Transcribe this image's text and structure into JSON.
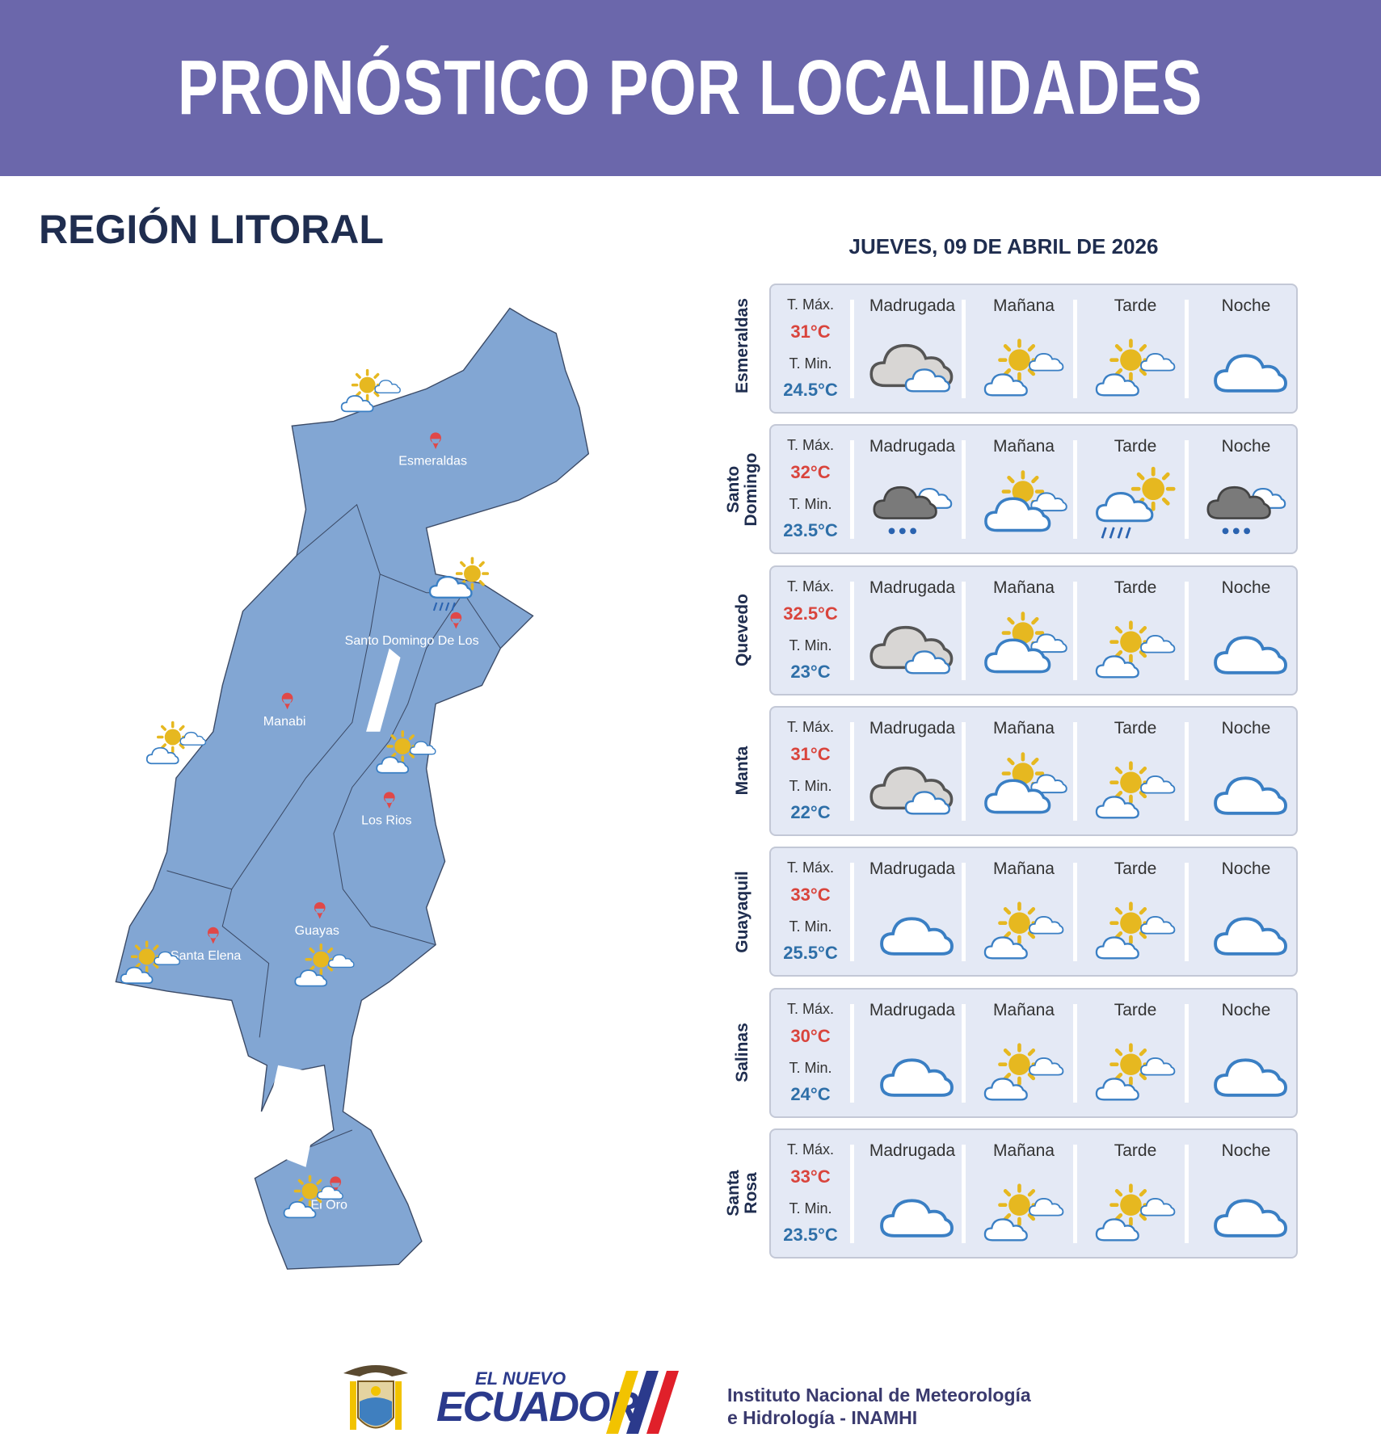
{
  "header": {
    "title": "PRONÓSTICO POR LOCALIDADES"
  },
  "region": "REGIÓN LITORAL",
  "date": "JUEVES, 09 DE ABRIL DE 2026",
  "forecast": {
    "columns": [
      "Madrugada",
      "Mañana",
      "Tarde",
      "Noche"
    ],
    "max_label": "T. Máx.",
    "min_label": "T. Min.",
    "rows": [
      {
        "city": "Esmeraldas",
        "max": "31°C",
        "min": "24.5°C"
      },
      {
        "city": "Santo Domingo",
        "max": "32°C",
        "min": "23.5°C"
      },
      {
        "city": "Quevedo",
        "max": "32.5°C",
        "min": "23°C"
      },
      {
        "city": "Manta",
        "max": "31°C",
        "min": "22°C"
      },
      {
        "city": "Guayaquil",
        "max": "33°C",
        "min": "25.5°C"
      },
      {
        "city": "Salinas",
        "max": "30°C",
        "min": "24°C"
      },
      {
        "city": "Santa Rosa",
        "max": "33°C",
        "min": "23.5°C"
      }
    ]
  },
  "map": {
    "labels": [
      "Esmeraldas",
      "Santo Domingo De Los",
      "Manabi",
      "Los Rios",
      "Guayas",
      "Santa Elena",
      "El Oro"
    ]
  },
  "footer": {
    "brand_top": "EL NUEVO",
    "brand": "ECUADOR",
    "institute_line1": "Instituto Nacional de Meteorología",
    "institute_line2": "e Hidrología - INAMHI"
  }
}
